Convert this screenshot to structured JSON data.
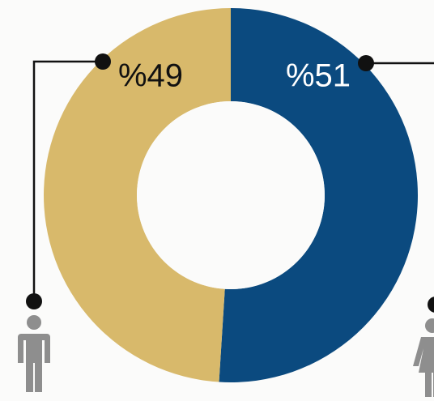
{
  "chart_data": {
    "type": "pie",
    "donut": true,
    "values": [
      51,
      49
    ],
    "value_labels": [
      "%51",
      "%49"
    ],
    "colors": [
      "#0b4a7f",
      "#d8b96b"
    ],
    "label_colors": [
      "#ffffff",
      "#111111"
    ]
  }
}
